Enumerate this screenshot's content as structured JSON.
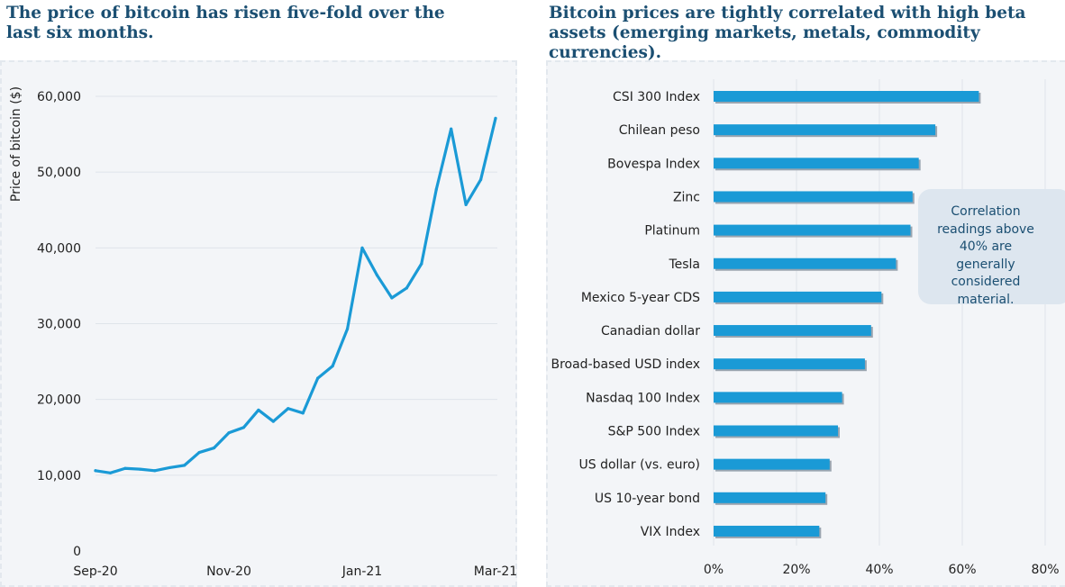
{
  "titles": {
    "left": "The price of bitcoin has risen five-fold over the last six months.",
    "right": "Bitcoin prices are tightly correlated with high beta assets (emerging markets, metals, commodity currencies)."
  },
  "callout": {
    "text": "Correlation readings above 40% are generally considered material."
  },
  "colors": {
    "accent": "#1a9ad6",
    "title": "#1b4f72",
    "panel": "#f3f5f8",
    "callout": "#dde6ef"
  },
  "chart_data": [
    {
      "type": "line",
      "title": "The price of bitcoin has risen five-fold over the last six months.",
      "xlabel": "",
      "ylabel": "Price of bitcoin ($)",
      "ylim": [
        0,
        60000
      ],
      "yticks": [
        0,
        10000,
        20000,
        30000,
        40000,
        50000,
        60000
      ],
      "ytick_labels": [
        "0",
        "10,000",
        "20,000",
        "30,000",
        "40,000",
        "50,000",
        "60,000"
      ],
      "xtick_labels": [
        "Sep-20",
        "Nov-20",
        "Jan-21",
        "Mar-21"
      ],
      "xtick_positions": [
        0,
        9,
        18,
        27
      ],
      "x": [
        0,
        1,
        2,
        3,
        4,
        5,
        6,
        7,
        8,
        9,
        10,
        11,
        12,
        13,
        14,
        15,
        16,
        17,
        18,
        19,
        20,
        21,
        22,
        23,
        24,
        25,
        26,
        27
      ],
      "values": [
        10600,
        10300,
        10900,
        10800,
        10600,
        11000,
        11300,
        13000,
        13600,
        15600,
        16300,
        18600,
        17100,
        18800,
        18200,
        22800,
        24400,
        29300,
        40000,
        36400,
        33400,
        34700,
        37900,
        47700,
        55700,
        45700,
        49000,
        57100
      ],
      "grid": true
    },
    {
      "type": "bar",
      "orientation": "horizontal",
      "title": "Bitcoin prices are tightly correlated with high beta assets (emerging markets, metals, commodity currencies).",
      "categories": [
        "CSI 300 Index",
        "Chilean peso",
        "Bovespa Index",
        "Zinc",
        "Platinum",
        "Tesla",
        "Mexico 5-year CDS",
        "Canadian dollar",
        "Broad-based USD index",
        "Nasdaq 100 Index",
        "S&P 500 Index",
        "US dollar (vs. euro)",
        "US 10-year bond",
        "VIX Index"
      ],
      "values": [
        64,
        53.5,
        49.5,
        48,
        47.5,
        44,
        40.5,
        38,
        36.5,
        31,
        30,
        28,
        27,
        25.5
      ],
      "xlim": [
        0,
        80
      ],
      "xticks": [
        0,
        20,
        40,
        60,
        80
      ],
      "xtick_labels": [
        "0%",
        "20%",
        "40%",
        "60%",
        "80%"
      ],
      "grid": true
    }
  ]
}
